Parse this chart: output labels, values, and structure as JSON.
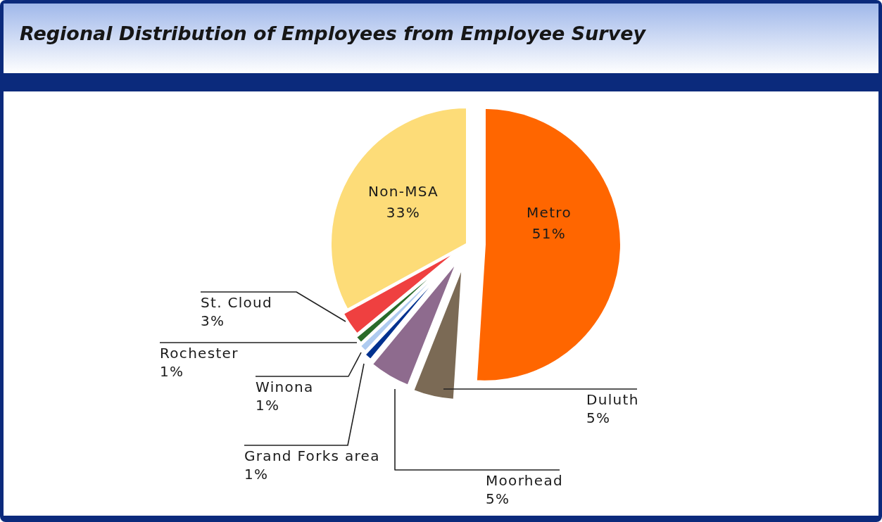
{
  "chart_data": {
    "type": "pie",
    "title": "Regional Distribution of Employees from Employee Survey",
    "categories": [
      "Metro",
      "Duluth",
      "Moorhead",
      "Grand Forks area",
      "Winona",
      "Rochester",
      "St. Cloud",
      "Non-MSA"
    ],
    "values": [
      51,
      5,
      5,
      1,
      1,
      1,
      3,
      33
    ],
    "colors": [
      "#ff6600",
      "#7b6a55",
      "#8e6b8e",
      "#00318f",
      "#aecbf0",
      "#2a6b2a",
      "#ef4040",
      "#fddc78"
    ],
    "value_labels": [
      "51%",
      "5%",
      "5%",
      "1%",
      "1%",
      "1%",
      "3%",
      "33%"
    ]
  }
}
